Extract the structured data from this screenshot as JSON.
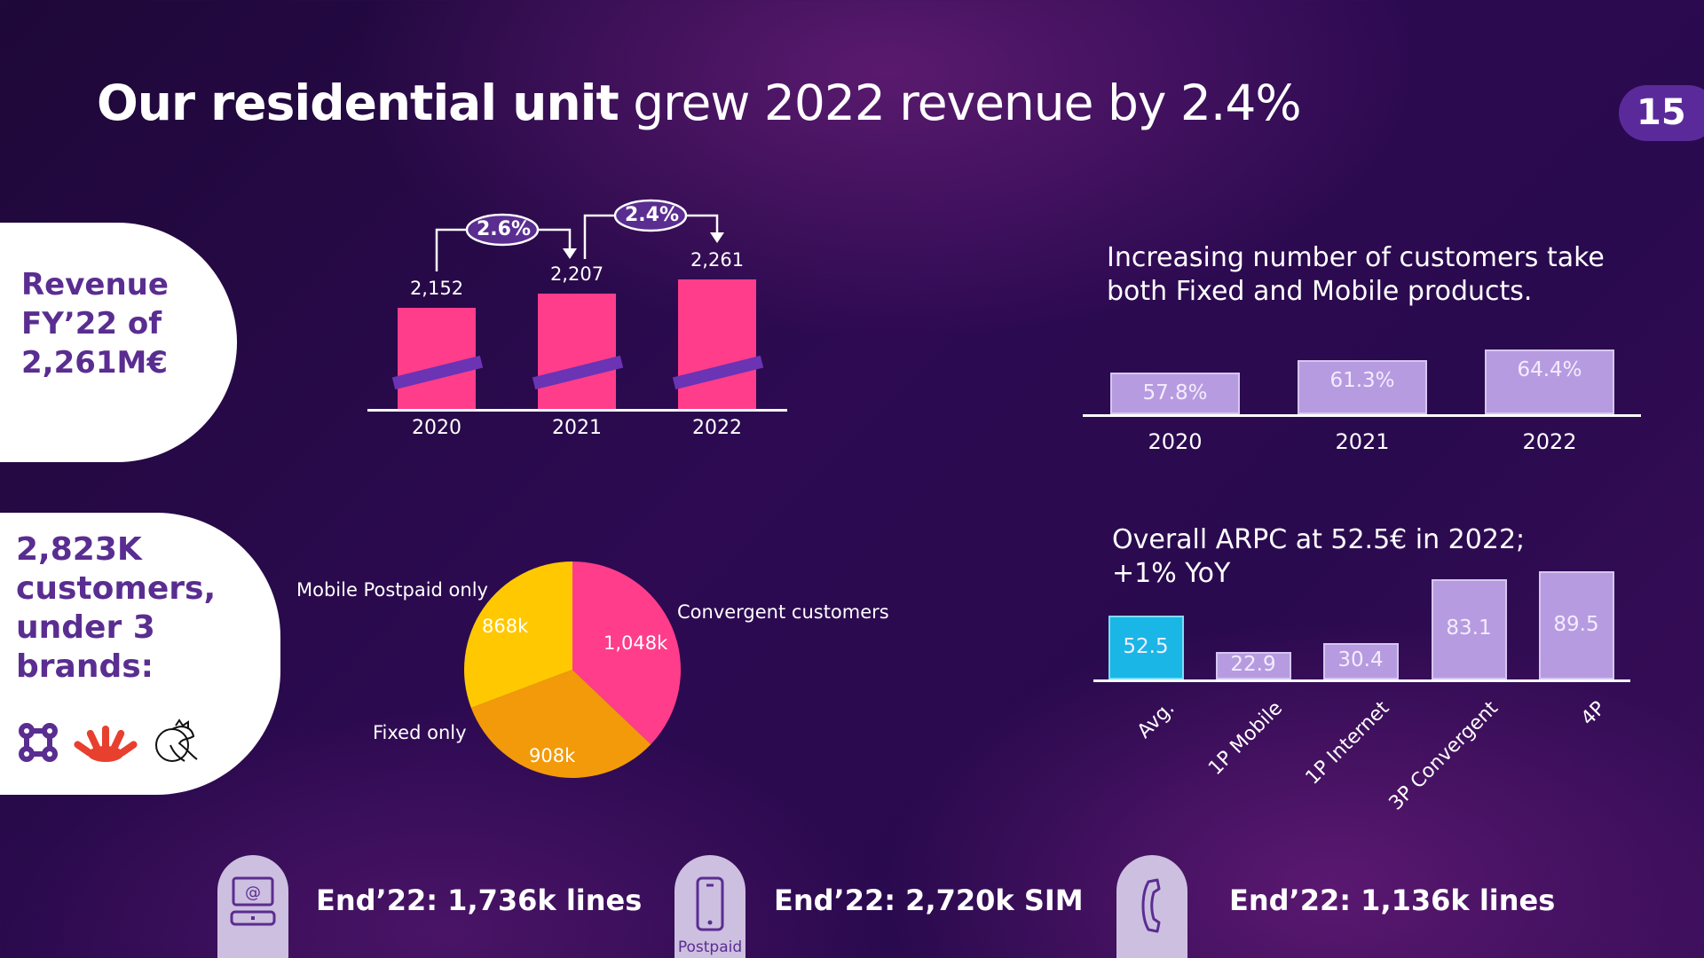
{
  "title": {
    "bold": "Our residential unit",
    "light": " grew 2022 revenue by 2.4%"
  },
  "page_number": "15",
  "revenue_card": {
    "lines": [
      "Revenue",
      "FY’22 of",
      "2,261M€"
    ]
  },
  "customers_card": {
    "lines": [
      "2,823K",
      "customers,",
      "under 3",
      "brands:"
    ],
    "brand_logos": [
      "quatro-knot-logo",
      "red-hand-logo",
      "dragon-logo"
    ]
  },
  "chart_data": [
    {
      "type": "bar",
      "categories": [
        "2020",
        "2021",
        "2022"
      ],
      "values": [
        2152,
        2207,
        2261
      ],
      "value_labels": [
        "2,152",
        "2,207",
        "2,261"
      ],
      "broken_axis": true,
      "growth_annotations": [
        "2.6%",
        "2.4%"
      ],
      "colors": {
        "bar": "#ff3d8b",
        "break": "#6a34b4"
      }
    },
    {
      "type": "bar",
      "title": "Increasing number of customers take both Fixed and Mobile products.",
      "categories": [
        "2020",
        "2021",
        "2022"
      ],
      "values": [
        57.8,
        61.3,
        64.4
      ],
      "value_labels": [
        "57.8%",
        "61.3%",
        "64.4%"
      ],
      "colors": {
        "bar": "#b79be0"
      }
    },
    {
      "type": "bar",
      "title": "Overall ARPC at 52.5€ in 2022; +1% YoY",
      "categories": [
        "Avg.",
        "1P Mobile",
        "1P Internet",
        "3P Convergent",
        "4P"
      ],
      "values": [
        52.5,
        22.9,
        30.4,
        83.1,
        89.5
      ],
      "value_labels": [
        "52.5",
        "22.9",
        "30.4",
        "83.1",
        "89.5"
      ],
      "colors": {
        "highlight": "#19b6e6",
        "bar": "#b79be0"
      }
    },
    {
      "type": "pie",
      "slices": [
        {
          "name": "Convergent customers",
          "value": 1048,
          "label": "1,048k",
          "color": "#ff3d8b"
        },
        {
          "name": "Fixed only",
          "value": 908,
          "label": "908k",
          "color": "#f29a0a"
        },
        {
          "name": "Mobile Postpaid only",
          "value": 868,
          "label": "868k",
          "color": "#ffc800"
        }
      ]
    }
  ],
  "footer": [
    {
      "icon": "internet-router-icon",
      "text": "End’22: 1,736k lines"
    },
    {
      "icon": "smartphone-icon",
      "sub": "Postpaid",
      "text": "End’22: 2,720k SIM"
    },
    {
      "icon": "phone-handset-icon",
      "text": "End’22: 1,136k lines"
    }
  ]
}
